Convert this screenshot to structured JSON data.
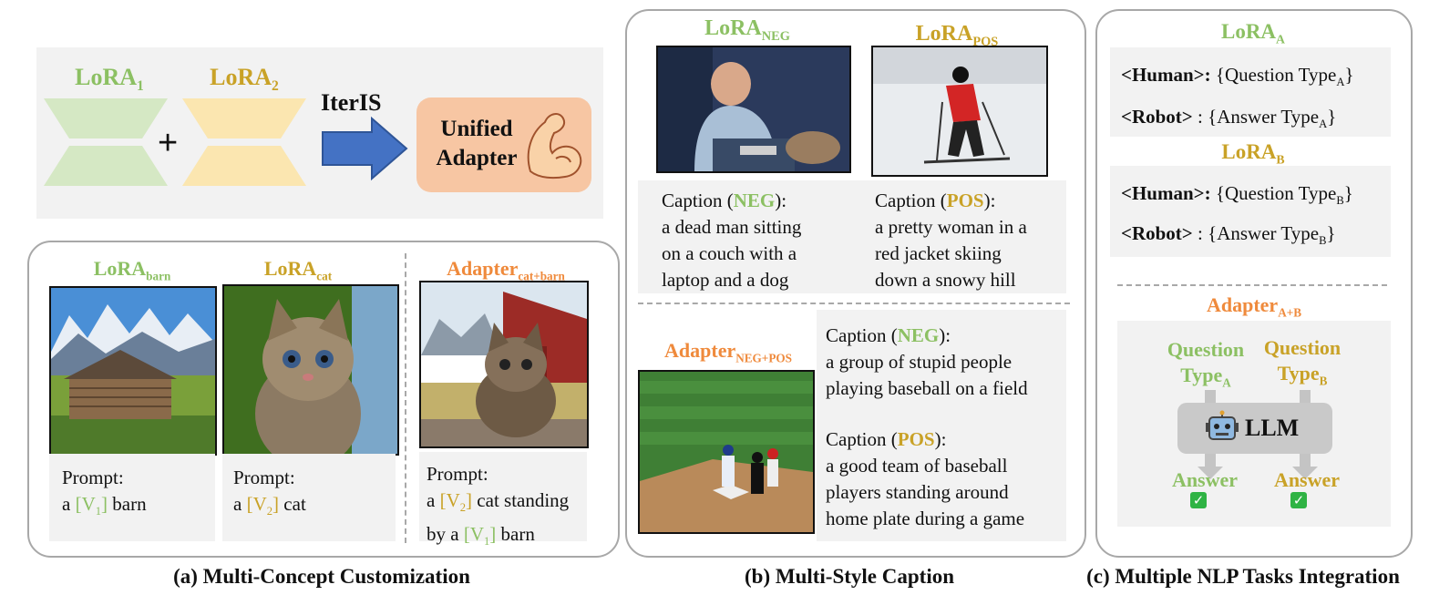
{
  "panel_a": {
    "top": {
      "lora1": {
        "base": "LoRA",
        "sub": "1"
      },
      "lora2": {
        "base": "LoRA",
        "sub": "2"
      },
      "plus": "+",
      "iteris": "IterIS",
      "unified": "Unified Adapter"
    },
    "bottom": {
      "lora_barn": {
        "base": "LoRA",
        "sub": "barn"
      },
      "lora_cat": {
        "base": "LoRA",
        "sub": "cat"
      },
      "adapter": {
        "base": "Adapter",
        "sub": "cat+barn"
      },
      "prompt_label": "Prompt:",
      "prompt1": {
        "pre": "a ",
        "tok": "[V",
        "tok_sub": "1",
        "tok_end": "]",
        "post": " barn"
      },
      "prompt2": {
        "pre": "a ",
        "tok": "[V",
        "tok_sub": "2",
        "tok_end": "]",
        "post": " cat"
      },
      "prompt3_line1": {
        "pre": "a ",
        "tok": "[V",
        "tok_sub": "2",
        "tok_end": "]",
        "post": " cat standing"
      },
      "prompt3_line2": {
        "pre": "by a ",
        "tok": "[V",
        "tok_sub": "1",
        "tok_end": "]",
        "post": " barn"
      }
    },
    "caption": "(a) Multi-Concept Customization"
  },
  "panel_b": {
    "lora_neg": {
      "base": "LoRA",
      "sub": "NEG"
    },
    "lora_pos": {
      "base": "LoRA",
      "sub": "POS"
    },
    "adapter": {
      "base": "Adapter",
      "sub": "NEG+POS"
    },
    "cap_word": "Caption (",
    "neg": "NEG",
    "pos": "POS",
    "cap_end": "):",
    "neg_text": [
      "a dead man sitting",
      "on a couch with a",
      "laptop and a dog"
    ],
    "pos_text": [
      "a pretty woman in a",
      "red jacket skiing",
      "down a snowy hill"
    ],
    "adapter_neg_text": [
      "a group of stupid people",
      "playing baseball on a field"
    ],
    "adapter_pos_text": [
      "a good team of baseball",
      "players standing around",
      "home plate during a game"
    ],
    "caption": "(b) Multi-Style Caption"
  },
  "panel_c": {
    "lora_a": {
      "base": "LoRA",
      "sub": "A"
    },
    "lora_b": {
      "base": "LoRA",
      "sub": "B"
    },
    "human": "<Human>:",
    "robot": "<Robot>",
    "robot_colon": " :",
    "question_type": "{Question Type",
    "answer_type": "{Answer Type",
    "close": "}",
    "sub_a": "A",
    "sub_b": "B",
    "adapter": {
      "base": "Adapter",
      "sub": "A+B"
    },
    "question": "Question",
    "type": "Type",
    "llm": "LLM",
    "answer": "Answer",
    "check": "✓",
    "caption": "(c) Multiple NLP Tasks Integration"
  },
  "colors": {
    "green": "#8cc063",
    "gold": "#c9a227",
    "orange": "#ef8a3c",
    "arrow_blue": "#4472c4",
    "adapter_fill": "#f7c6a3"
  }
}
